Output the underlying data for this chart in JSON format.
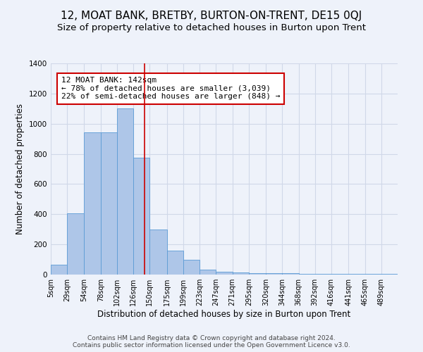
{
  "title": "12, MOAT BANK, BRETBY, BURTON-ON-TRENT, DE15 0QJ",
  "subtitle": "Size of property relative to detached houses in Burton upon Trent",
  "xlabel": "Distribution of detached houses by size in Burton upon Trent",
  "ylabel": "Number of detached properties",
  "bin_labels": [
    "5sqm",
    "29sqm",
    "54sqm",
    "78sqm",
    "102sqm",
    "126sqm",
    "150sqm",
    "175sqm",
    "199sqm",
    "223sqm",
    "247sqm",
    "271sqm",
    "295sqm",
    "320sqm",
    "344sqm",
    "368sqm",
    "392sqm",
    "416sqm",
    "441sqm",
    "465sqm",
    "489sqm"
  ],
  "bin_edges": [
    5,
    29,
    54,
    78,
    102,
    126,
    150,
    175,
    199,
    223,
    247,
    271,
    295,
    320,
    344,
    368,
    392,
    416,
    441,
    465,
    489,
    513
  ],
  "bar_heights": [
    65,
    405,
    945,
    945,
    1100,
    775,
    300,
    160,
    100,
    35,
    18,
    12,
    10,
    8,
    8,
    7,
    6,
    5,
    5,
    5,
    5
  ],
  "bar_color": "#aec6e8",
  "bar_edgecolor": "#5b9bd5",
  "property_value": 142,
  "vline_color": "#cc0000",
  "annotation_text": "12 MOAT BANK: 142sqm\n← 78% of detached houses are smaller (3,039)\n22% of semi-detached houses are larger (848) →",
  "annotation_box_color": "#ffffff",
  "annotation_box_edgecolor": "#cc0000",
  "ylim": [
    0,
    1400
  ],
  "grid_color": "#d0d8e8",
  "background_color": "#eef2fa",
  "footer_line1": "Contains HM Land Registry data © Crown copyright and database right 2024.",
  "footer_line2": "Contains public sector information licensed under the Open Government Licence v3.0.",
  "title_fontsize": 11,
  "subtitle_fontsize": 9.5,
  "label_fontsize": 8.5,
  "tick_fontsize": 7,
  "annotation_fontsize": 8,
  "footer_fontsize": 6.5
}
